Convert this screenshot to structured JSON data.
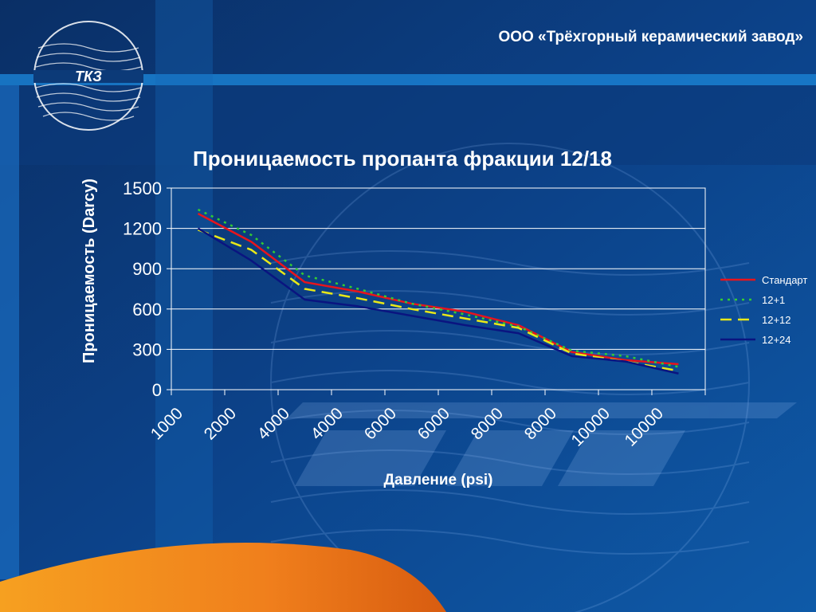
{
  "header": {
    "company": "ООО «Трёхгорный керамический завод»"
  },
  "logo": {
    "text": "ТКЗ"
  },
  "colors": {
    "background": "#0c3a78",
    "accent_band": "#1a7fd0",
    "orange": "#f07f1c"
  },
  "chart_data": {
    "type": "line",
    "title": "Проницаемость пропанта фракции 12/18",
    "xlabel": "Давление (psi)",
    "ylabel": "Проницаемость (Darcy)",
    "categories": [
      "1000",
      "2000",
      "4000",
      "4000",
      "6000",
      "6000",
      "8000",
      "8000",
      "10000",
      "10000"
    ],
    "ylim": [
      0,
      1500
    ],
    "yticks": [
      "0",
      "300",
      "600",
      "900",
      "1200",
      "1500"
    ],
    "grid": true,
    "legend_position": "right",
    "series": [
      {
        "name": "Стандарт",
        "color": "#e8141c",
        "dash": "solid",
        "values": [
          1310,
          1100,
          800,
          730,
          640,
          580,
          480,
          280,
          220,
          190
        ]
      },
      {
        "name": "12+1",
        "color": "#33cc33",
        "dash": "dotted",
        "values": [
          1340,
          1150,
          850,
          750,
          640,
          560,
          470,
          290,
          250,
          170
        ]
      },
      {
        "name": "12+12",
        "color": "#e8e818",
        "dash": "dashed",
        "values": [
          1190,
          1040,
          750,
          680,
          600,
          530,
          460,
          270,
          210,
          140
        ]
      },
      {
        "name": "12+24",
        "color": "#0a1480",
        "dash": "solid",
        "values": [
          1200,
          960,
          670,
          620,
          550,
          480,
          420,
          250,
          210,
          120
        ]
      }
    ]
  }
}
